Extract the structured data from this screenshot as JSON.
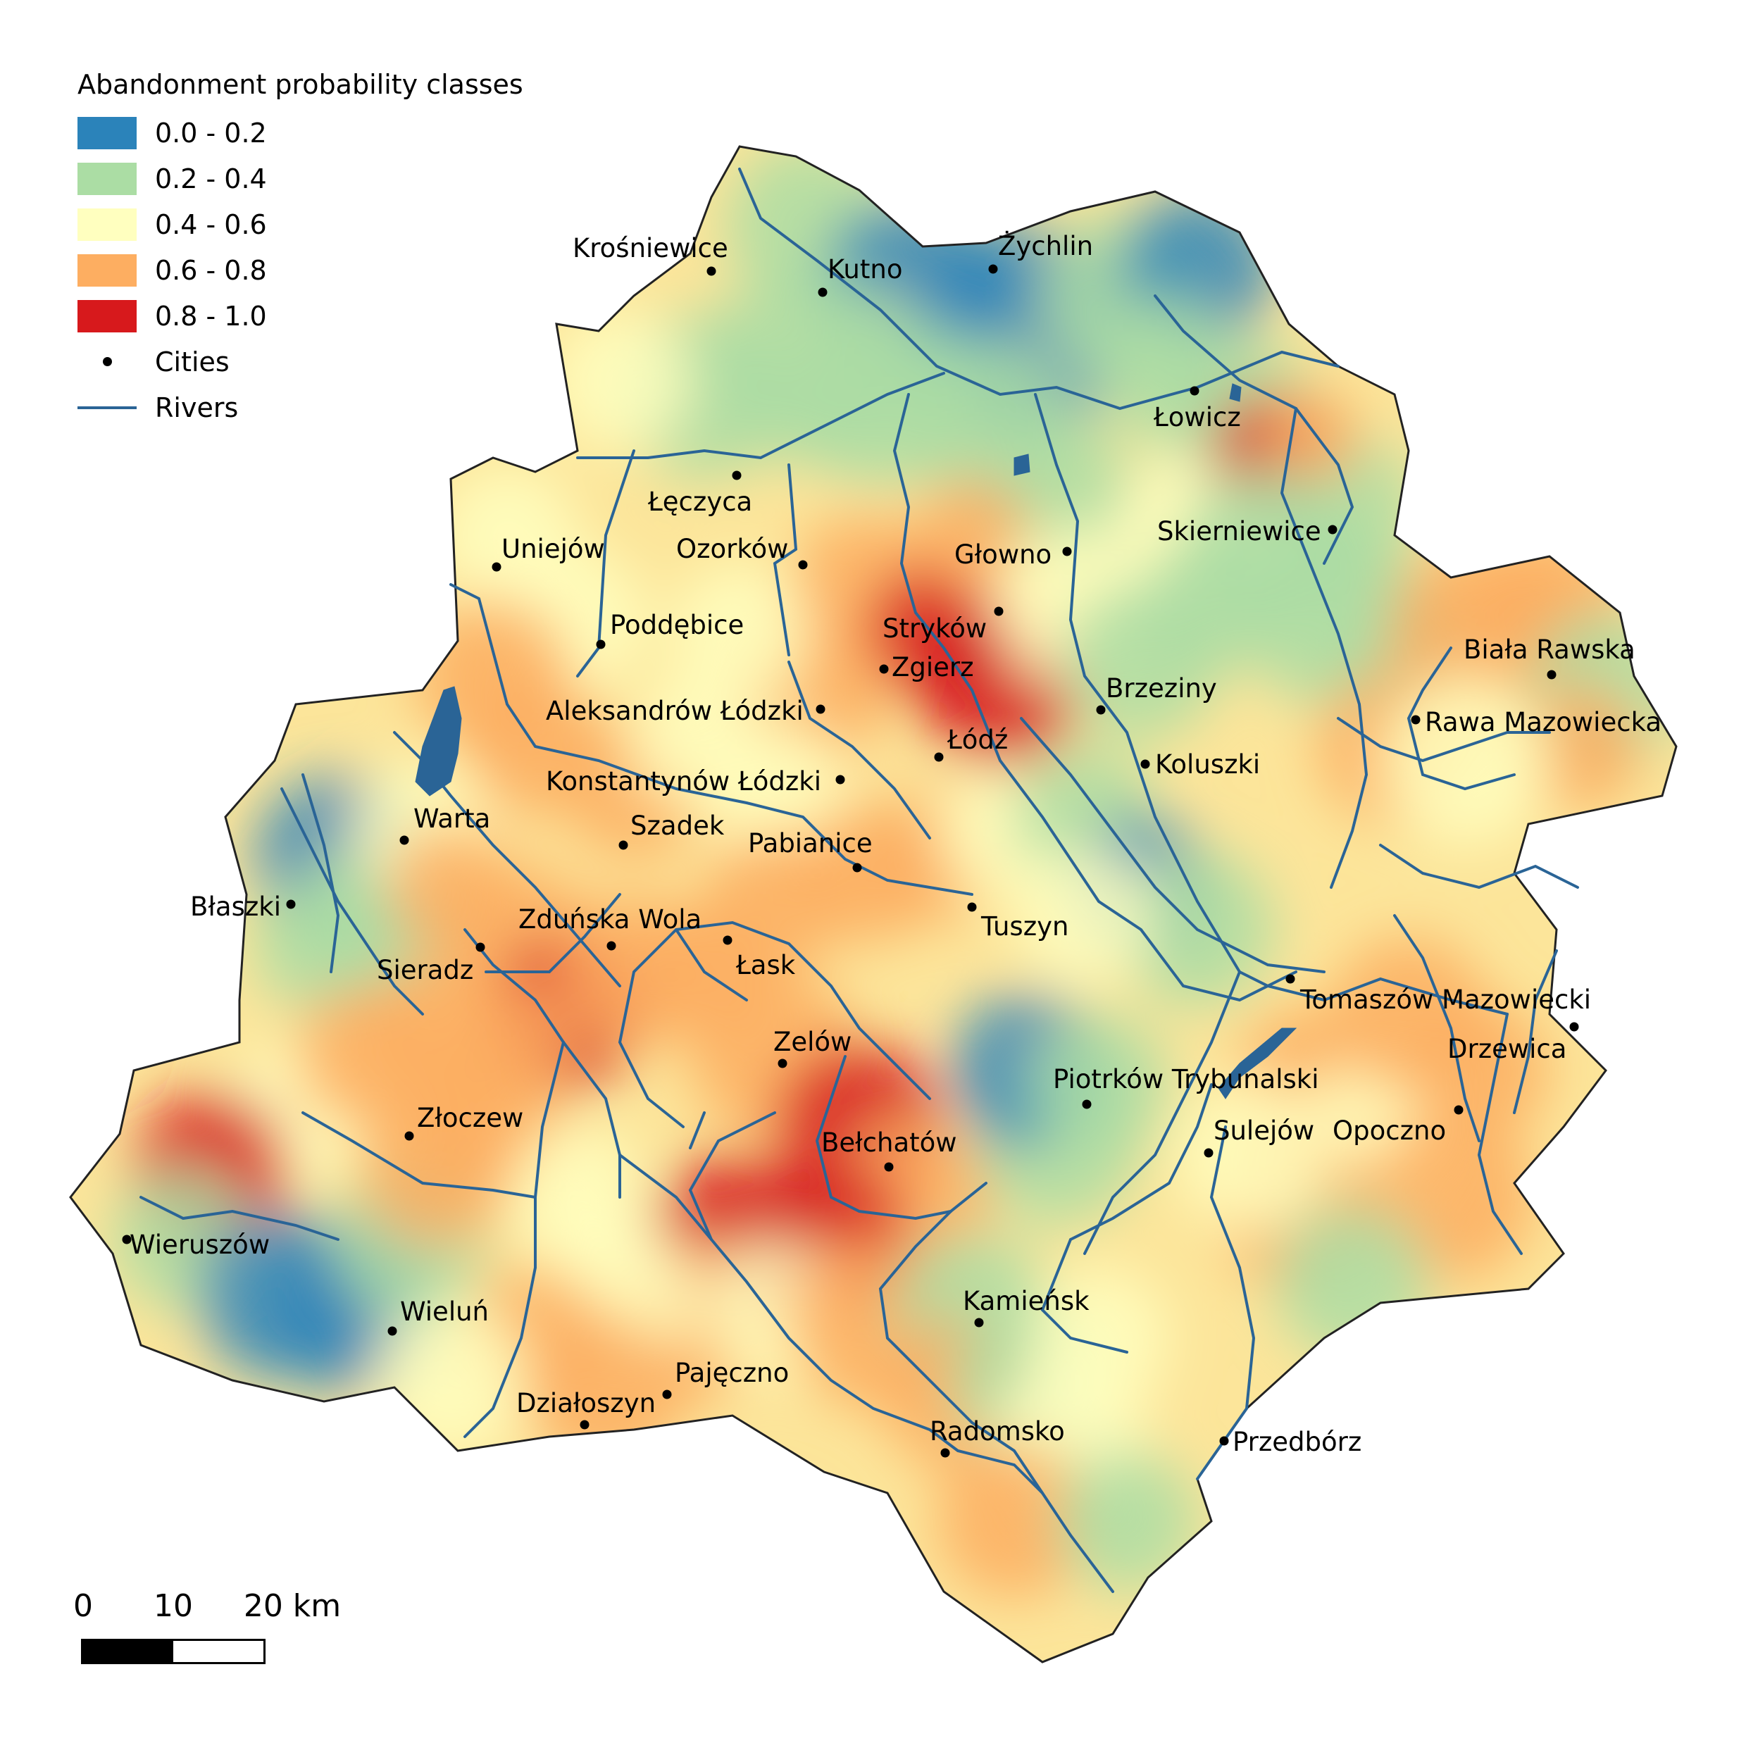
{
  "legend": {
    "title": "Abandonment probability classes",
    "classes": [
      {
        "label": "0.0 - 0.2",
        "color": "#2b83ba"
      },
      {
        "label": "0.2 - 0.4",
        "color": "#abdda4"
      },
      {
        "label": "0.4 - 0.6",
        "color": "#ffffbf"
      },
      {
        "label": "0.6 - 0.8",
        "color": "#fdae61"
      },
      {
        "label": "0.8 - 1.0",
        "color": "#d7191c"
      }
    ],
    "cities_label": "Cities",
    "rivers_label": "Rivers",
    "river_color": "#2a6496"
  },
  "scale": {
    "labels": [
      "0",
      "10",
      "20 km"
    ]
  },
  "cities": [
    {
      "name": "Krośniewice"
    },
    {
      "name": "Kutno"
    },
    {
      "name": "Żychlin"
    },
    {
      "name": "Łowicz"
    },
    {
      "name": "Łęczyca"
    },
    {
      "name": "Skierniewice"
    },
    {
      "name": "Uniejów"
    },
    {
      "name": "Ozorków"
    },
    {
      "name": "Głowno"
    },
    {
      "name": "Poddębice"
    },
    {
      "name": "Stryków"
    },
    {
      "name": "Zgierz"
    },
    {
      "name": "Biała Rawska"
    },
    {
      "name": "Aleksandrów Łódzki"
    },
    {
      "name": "Brzeziny"
    },
    {
      "name": "Rawa Mazowiecka"
    },
    {
      "name": "Łódź"
    },
    {
      "name": "Koluszki"
    },
    {
      "name": "Konstantynów Łódzki"
    },
    {
      "name": "Warta"
    },
    {
      "name": "Szadek"
    },
    {
      "name": "Pabianice"
    },
    {
      "name": "Błaszki"
    },
    {
      "name": "Tuszyn"
    },
    {
      "name": "Zduńska Wola"
    },
    {
      "name": "Sieradz"
    },
    {
      "name": "Łask"
    },
    {
      "name": "Tomaszów Mazowiecki"
    },
    {
      "name": "Zelów"
    },
    {
      "name": "Drzewica"
    },
    {
      "name": "Piotrków Trybunalski"
    },
    {
      "name": "Złoczew"
    },
    {
      "name": "Sulejów"
    },
    {
      "name": "Opoczno"
    },
    {
      "name": "Bełchatów"
    },
    {
      "name": "Wieruszów"
    },
    {
      "name": "Wieluń"
    },
    {
      "name": "Kamieńsk"
    },
    {
      "name": "Pajęczno"
    },
    {
      "name": "Działoszyn"
    },
    {
      "name": "Radomsko"
    },
    {
      "name": "Przedbórz"
    }
  ]
}
